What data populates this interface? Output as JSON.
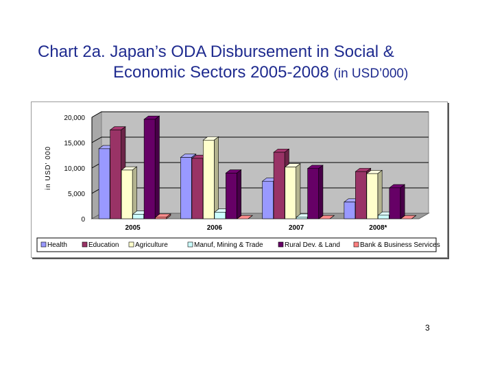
{
  "title": {
    "line1": "Chart 2a.    Japan’s ODA Disbursement in Social &",
    "line2": "Economic Sectors 2005-2008",
    "unit": "(in USD’000)"
  },
  "page_number": "3",
  "chart_data": {
    "type": "bar",
    "title": "",
    "xlabel": "",
    "ylabel": "in USD' 000",
    "ylim": [
      0,
      20000
    ],
    "yticks": [
      0,
      5000,
      10000,
      15000,
      20000
    ],
    "ytick_labels": [
      "0",
      "5,000",
      "10,000",
      "15,000",
      "20,000"
    ],
    "grid": true,
    "legend_position": "bottom",
    "categories": [
      "2005",
      "2006",
      "2007",
      "2008*"
    ],
    "series": [
      {
        "name": "Health",
        "color": "#9999ff",
        "values": [
          13800,
          12100,
          7400,
          3300
        ]
      },
      {
        "name": "Education",
        "color": "#993366",
        "values": [
          17500,
          11900,
          13100,
          9300
        ]
      },
      {
        "name": "Agriculture",
        "color": "#ffffcc",
        "values": [
          9600,
          15500,
          10200,
          8900
        ]
      },
      {
        "name": "Manuf, Mining & Trade",
        "color": "#ccffff",
        "values": [
          900,
          1300,
          300,
          700
        ]
      },
      {
        "name": "Rural Dev. & Land",
        "color": "#660066",
        "values": [
          19600,
          9000,
          9900,
          6100
        ]
      },
      {
        "name": "Bank & Business Services",
        "color": "#ff8080",
        "values": [
          300,
          0,
          0,
          0
        ]
      }
    ]
  }
}
